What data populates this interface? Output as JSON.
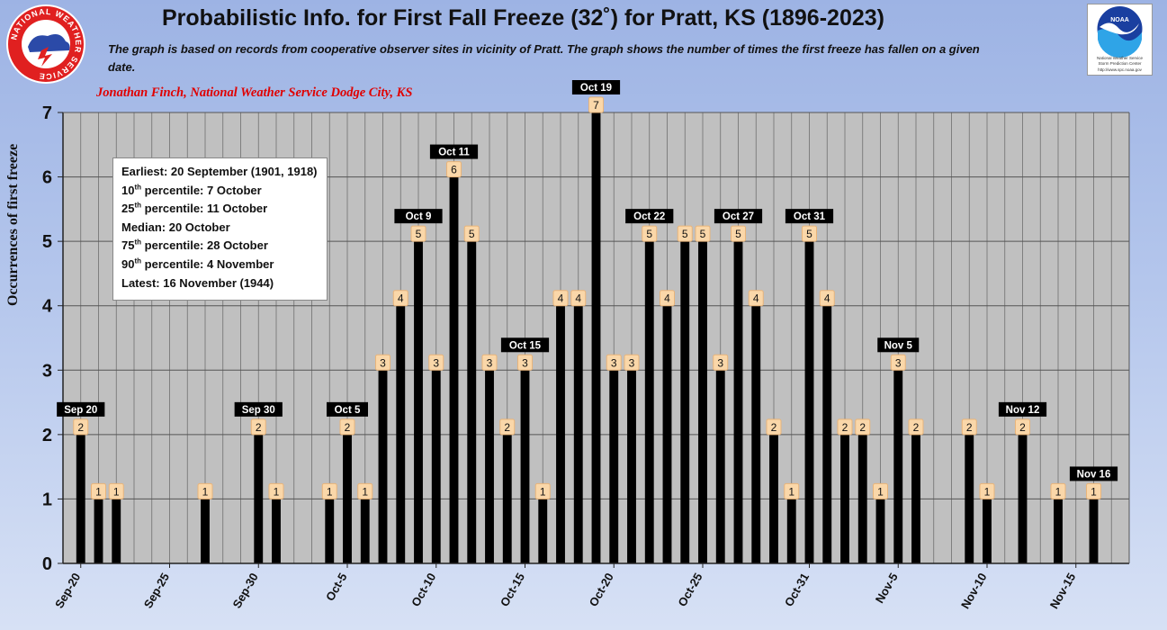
{
  "header": {
    "title": "Probabilistic Info. for First Fall Freeze (32˚) for Pratt, KS (1896-2023)",
    "subtitle": "The graph is based on records from cooperative observer sites in vicinity of Pratt. The graph shows the number of times the first freeze has fallen on a given date.",
    "credit": "Jonathan Finch, National Weather Service Dodge City, KS"
  },
  "logos": {
    "nws_text": "NATIONAL WEATHER SERVICE",
    "noaa_text": "NOAA",
    "noaa_caption_1": "National Weather Service",
    "noaa_caption_2": "Storm Prediction Center",
    "noaa_caption_3": "http://www.spc.noaa.gov"
  },
  "stats": {
    "earliest": "Earliest: 20 September (1901, 1918)",
    "p10_prefix": "10",
    "p10_sup": "th",
    "p10_rest": " percentile: 7 October",
    "p25_prefix": "25",
    "p25_sup": "th",
    "p25_rest": " percentile: 11 October",
    "median": "Median: 20 October",
    "p75_prefix": "75",
    "p75_sup": "th",
    "p75_rest": " percentile: 28 October",
    "p90_prefix": "90",
    "p90_sup": "th",
    "p90_rest": " percentile: 4 November",
    "latest": "Latest: 16 November (1944)"
  },
  "colors": {
    "bar": "#000000",
    "plot_bg": "#c0c0c0",
    "label_fill": "#fad7a9",
    "callout_bg": "#000000",
    "credit": "#e00000"
  },
  "chart_data": {
    "type": "bar",
    "ylabel": "Occurrences of first freeze",
    "ylim": [
      0,
      7
    ],
    "yticks": [
      0,
      1,
      2,
      3,
      4,
      5,
      6,
      7
    ],
    "grid": "horizontal and vertical",
    "categories": [
      "Sep-20",
      "Sep-21",
      "Sep-22",
      "Sep-23",
      "Sep-24",
      "Sep-25",
      "Sep-26",
      "Sep-27",
      "Sep-28",
      "Sep-29",
      "Sep-30",
      "Oct-1",
      "Oct-2",
      "Oct-3",
      "Oct-4",
      "Oct-5",
      "Oct-6",
      "Oct-7",
      "Oct-8",
      "Oct-9",
      "Oct-10",
      "Oct-11",
      "Oct-12",
      "Oct-13",
      "Oct-14",
      "Oct-15",
      "Oct-16",
      "Oct-17",
      "Oct-18",
      "Oct-19",
      "Oct-20",
      "Oct-21",
      "Oct-22",
      "Oct-23",
      "Oct-24",
      "Oct-25",
      "Oct-26",
      "Oct-27",
      "Oct-28",
      "Oct-29",
      "Oct-30",
      "Oct-31",
      "Nov-1",
      "Nov-2",
      "Nov-3",
      "Nov-4",
      "Nov-5",
      "Nov-6",
      "Nov-7",
      "Nov-8",
      "Nov-9",
      "Nov-10",
      "Nov-11",
      "Nov-12",
      "Nov-13",
      "Nov-14",
      "Nov-15",
      "Nov-16"
    ],
    "values": [
      2,
      1,
      1,
      0,
      0,
      0,
      0,
      1,
      0,
      0,
      2,
      1,
      0,
      0,
      1,
      2,
      1,
      3,
      4,
      5,
      3,
      6,
      5,
      3,
      2,
      3,
      1,
      4,
      4,
      7,
      3,
      3,
      5,
      4,
      5,
      5,
      3,
      5,
      4,
      2,
      1,
      5,
      4,
      2,
      2,
      1,
      3,
      2,
      0,
      0,
      2,
      1,
      0,
      2,
      0,
      1,
      0,
      1
    ],
    "tick_labels": [
      "Sep-20",
      "Sep-25",
      "Sep-30",
      "Oct-5",
      "Oct-10",
      "Oct-15",
      "Oct-20",
      "Oct-25",
      "Oct-31",
      "Nov-5",
      "Nov-10",
      "Nov-15"
    ],
    "tick_positions": [
      0,
      5,
      10,
      15,
      20,
      25,
      30,
      35,
      41,
      46,
      51,
      56
    ],
    "annotations": [
      {
        "label": "Sep 20",
        "index": 0
      },
      {
        "label": "Sep 30",
        "index": 10
      },
      {
        "label": "Oct 5",
        "index": 15
      },
      {
        "label": "Oct  9",
        "index": 19
      },
      {
        "label": "Oct 11",
        "index": 21
      },
      {
        "label": "Oct 15",
        "index": 25
      },
      {
        "label": "Oct 19",
        "index": 29
      },
      {
        "label": "Oct 22",
        "index": 32
      },
      {
        "label": "Oct 27",
        "index": 37
      },
      {
        "label": "Oct 31",
        "index": 41
      },
      {
        "label": "Nov 5",
        "index": 46
      },
      {
        "label": "Nov 12",
        "index": 53
      },
      {
        "label": "Nov 16",
        "index": 57
      }
    ]
  }
}
